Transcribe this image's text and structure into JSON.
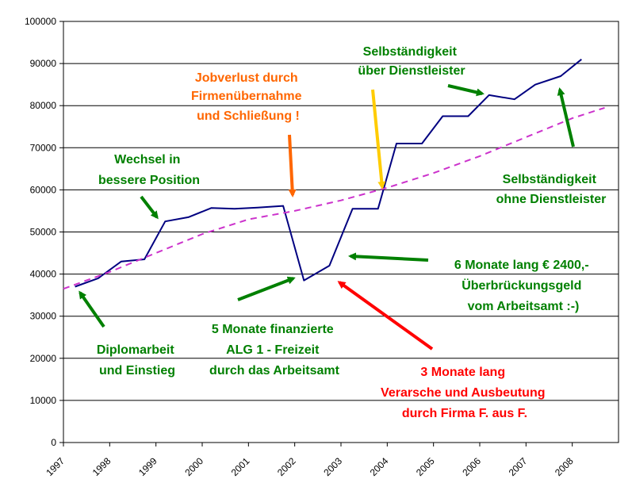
{
  "chart_data": {
    "type": "line",
    "title": "",
    "xlabel": "",
    "ylabel": "",
    "xlim": [
      1997,
      2009
    ],
    "ylim": [
      0,
      100000
    ],
    "yticks": [
      0,
      10000,
      20000,
      30000,
      40000,
      50000,
      60000,
      70000,
      80000,
      90000,
      100000
    ],
    "xticks": [
      "1997",
      "1998",
      "1999",
      "2000",
      "2001",
      "2002",
      "2003",
      "2004",
      "2005",
      "2006",
      "2007",
      "2008"
    ],
    "grid": "horizontal",
    "legend": "none",
    "series": [
      {
        "style": "solid",
        "color": "#000080",
        "x": [
          1997.25,
          1997.75,
          1998.25,
          1998.75,
          1999.2,
          1999.7,
          2000.2,
          2000.7,
          2001.2,
          2001.75,
          2002.2,
          2002.75,
          2003.25,
          2003.8,
          2004.2,
          2004.75,
          2005.2,
          2005.75,
          2006.2,
          2006.75,
          2007.2,
          2007.75,
          2008.2
        ],
        "y": [
          37000,
          39000,
          43000,
          43500,
          52500,
          53500,
          55700,
          55500,
          55800,
          56200,
          38500,
          42000,
          55500,
          55500,
          71000,
          71000,
          77500,
          77500,
          82500,
          81500,
          85000,
          87000,
          91000
        ]
      },
      {
        "style": "dashed",
        "color": "#cc33cc",
        "x": [
          1997,
          1998,
          1999,
          2000,
          2001,
          2002,
          2003,
          2004,
          2005,
          2006,
          2007,
          2008,
          2008.7
        ],
        "y": [
          36500,
          40500,
          45000,
          49500,
          53000,
          55000,
          57500,
          60500,
          64000,
          68000,
          72500,
          77000,
          79500
        ]
      }
    ],
    "annotations": [
      {
        "lines": [
          "Jobverlust durch",
          "Firmenübernahme",
          "und Schließung !"
        ],
        "color": "#ff6600"
      },
      {
        "lines": [
          "Selbständigkeit",
          "über Dienstleister"
        ],
        "color": "#008000"
      },
      {
        "lines": [
          "Wechsel in",
          "bessere Position"
        ],
        "color": "#008000"
      },
      {
        "lines": [
          "Selbständigkeit",
          "ohne Dienstleister"
        ],
        "color": "#008000"
      },
      {
        "lines": [
          "6 Monate lang € 2400,-",
          "Überbrückungsgeld",
          "vom Arbeitsamt :-)"
        ],
        "color": "#008000"
      },
      {
        "lines": [
          "5 Monate finanzierte",
          "ALG 1 - Freizeit",
          "durch das Arbeitsamt"
        ],
        "color": "#008000"
      },
      {
        "lines": [
          "Diplomarbeit",
          "und Einstieg"
        ],
        "color": "#008000"
      },
      {
        "lines": [
          "3 Monate lang",
          "Verarsche und Ausbeutung",
          "durch Firma F. aus F."
        ],
        "color": "#ff0000"
      }
    ],
    "colors": {
      "orange_arrow": "#ff6600",
      "yellow_arrow": "#ffcc00",
      "green_arrow": "#008000",
      "red_arrow": "#ff0000"
    }
  }
}
